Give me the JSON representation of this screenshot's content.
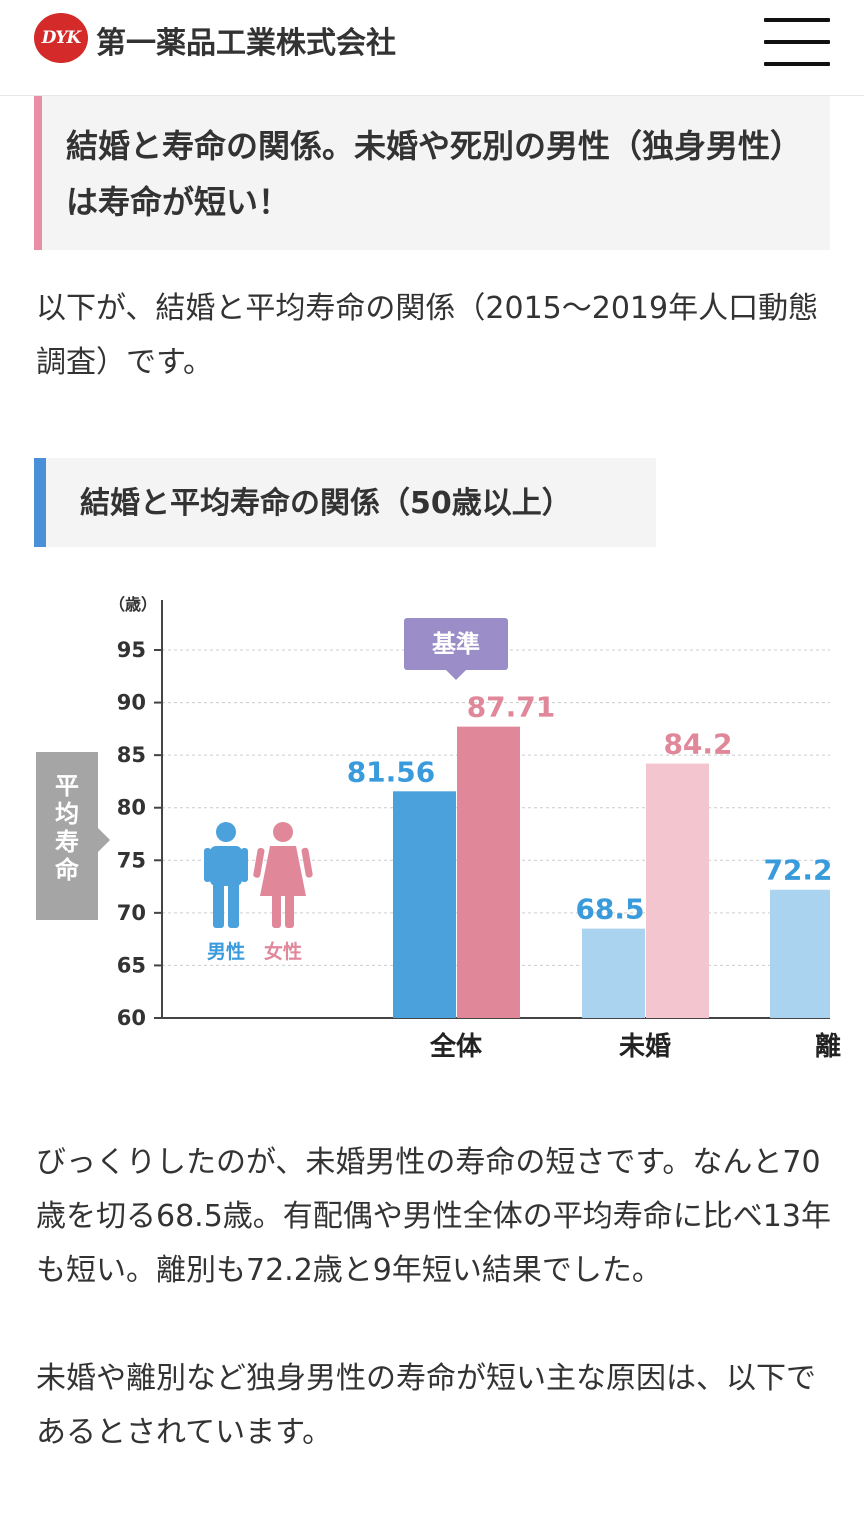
{
  "header": {
    "logo_text": "DYK",
    "company_name": "第一薬品工業株式会社",
    "menu_icon": "hamburger-menu-icon"
  },
  "section_heading": "結婚と寿命の関係。未婚や死別の男性（独身男性）は寿命が短い！",
  "intro_text": "以下が、結婚と平均寿命の関係（2015〜2019年人口動態調査）です。",
  "chart_heading": "結婚と平均寿命の関係（50歳以上）",
  "chart_data": {
    "type": "bar",
    "y_unit": "（歳）",
    "y_side_label": "平均寿命",
    "ylim": [
      60,
      95
    ],
    "y_ticks": [
      "60",
      "65",
      "70",
      "75",
      "80",
      "85",
      "90",
      "95"
    ],
    "categories": [
      "全体",
      "未婚",
      "離"
    ],
    "series": [
      {
        "name": "男性",
        "values": [
          81.56,
          68.5,
          72.2
        ],
        "labels": [
          "81.56",
          "68.5",
          "72.2"
        ]
      },
      {
        "name": "女性",
        "values": [
          87.71,
          84.2,
          null
        ],
        "labels": [
          "87.71",
          "84.2",
          ""
        ]
      }
    ],
    "callout": "基準",
    "colors": {
      "male_dark": "#4aa1dc",
      "male_light": "#a9d3ef",
      "female_dark": "#e0879a",
      "female_light": "#f2c5cf",
      "male_label": "#3a9bdc",
      "female_label": "#e0879a",
      "callout": "#9b8dc8",
      "side_label_bg": "#a5a5a5"
    },
    "legend": {
      "male": "男性",
      "female": "女性"
    },
    "grid": true
  },
  "body_text_1": "びっくりしたのが、未婚男性の寿命の短さです。なんと70歳を切る68.5歳。有配偶や男性全体の平均寿命に比べ13年も短い。離別も72.2歳と9年短い結果でした。",
  "body_text_2": "未婚や離別など独身男性の寿命が短い主な原因は、以下であるとされています。",
  "colors": {
    "heading_accent_pink": "#e88fa6",
    "heading_accent_blue": "#4a90d9",
    "logo_red": "#d42a2a"
  }
}
